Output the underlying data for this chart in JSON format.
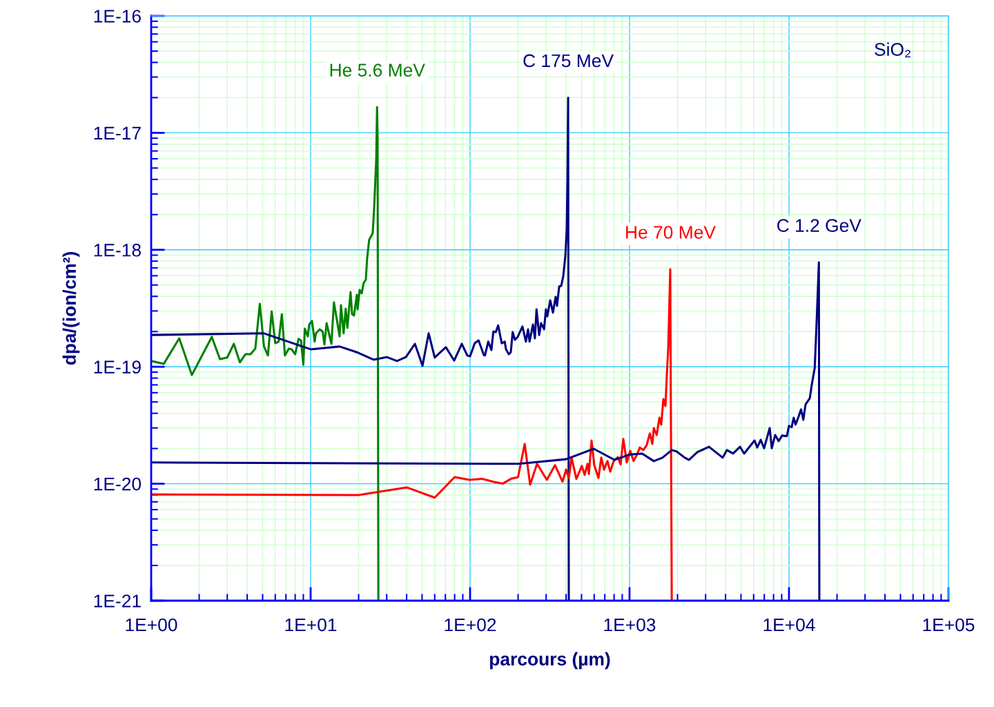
{
  "chart_data": {
    "type": "line",
    "xlabel": "parcours (µm)",
    "ylabel": "dpa/(ion/cm²)",
    "log": "xy",
    "grid": true,
    "legend": false,
    "marker": "none",
    "line_style": "solid",
    "xlim": [
      1,
      100000
    ],
    "ylim": [
      1e-21,
      1e-16
    ],
    "xticks": [
      {
        "value": 1,
        "label": "1E+00"
      },
      {
        "value": 2,
        "label": null
      },
      {
        "value": 3,
        "label": null
      },
      {
        "value": 4,
        "label": null
      },
      {
        "value": 5,
        "label": null
      },
      {
        "value": 6,
        "label": null
      },
      {
        "value": 7,
        "label": null
      },
      {
        "value": 8,
        "label": null
      },
      {
        "value": 9,
        "label": null
      },
      {
        "value": 10,
        "label": "1E+01"
      },
      {
        "value": 20,
        "label": null
      },
      {
        "value": 30,
        "label": null
      },
      {
        "value": 40,
        "label": null
      },
      {
        "value": 50,
        "label": null
      },
      {
        "value": 60,
        "label": null
      },
      {
        "value": 70,
        "label": null
      },
      {
        "value": 80,
        "label": null
      },
      {
        "value": 90,
        "label": null
      },
      {
        "value": 100,
        "label": "1E+02"
      },
      {
        "value": 200,
        "label": null
      },
      {
        "value": 300,
        "label": null
      },
      {
        "value": 400,
        "label": null
      },
      {
        "value": 500,
        "label": null
      },
      {
        "value": 600,
        "label": null
      },
      {
        "value": 700,
        "label": null
      },
      {
        "value": 800,
        "label": null
      },
      {
        "value": 900,
        "label": null
      },
      {
        "value": 1000,
        "label": "1E+03"
      },
      {
        "value": 2000,
        "label": null
      },
      {
        "value": 3000,
        "label": null
      },
      {
        "value": 4000,
        "label": null
      },
      {
        "value": 5000,
        "label": null
      },
      {
        "value": 6000,
        "label": null
      },
      {
        "value": 7000,
        "label": null
      },
      {
        "value": 8000,
        "label": null
      },
      {
        "value": 9000,
        "label": null
      },
      {
        "value": 10000,
        "label": "1E+04"
      },
      {
        "value": 20000,
        "label": null
      },
      {
        "value": 30000,
        "label": null
      },
      {
        "value": 40000,
        "label": null
      },
      {
        "value": 50000,
        "label": null
      },
      {
        "value": 60000,
        "label": null
      },
      {
        "value": 70000,
        "label": null
      },
      {
        "value": 80000,
        "label": null
      },
      {
        "value": 90000,
        "label": null
      },
      {
        "value": 100000,
        "label": "1E+05"
      }
    ],
    "yticks": [
      {
        "value": 1e-21,
        "label": "1E-21"
      },
      {
        "value": 2e-21,
        "label": null
      },
      {
        "value": 3e-21,
        "label": null
      },
      {
        "value": 4e-21,
        "label": null
      },
      {
        "value": 5e-21,
        "label": null
      },
      {
        "value": 6e-21,
        "label": null
      },
      {
        "value": 7e-21,
        "label": null
      },
      {
        "value": 8e-21,
        "label": null
      },
      {
        "value": 9e-21,
        "label": null
      },
      {
        "value": 1e-20,
        "label": "1E-20"
      },
      {
        "value": 2e-20,
        "label": null
      },
      {
        "value": 3e-20,
        "label": null
      },
      {
        "value": 4e-20,
        "label": null
      },
      {
        "value": 5e-20,
        "label": null
      },
      {
        "value": 6e-20,
        "label": null
      },
      {
        "value": 7e-20,
        "label": null
      },
      {
        "value": 8e-20,
        "label": null
      },
      {
        "value": 9e-20,
        "label": null
      },
      {
        "value": 1e-19,
        "label": "1E-19"
      },
      {
        "value": 2e-19,
        "label": null
      },
      {
        "value": 3e-19,
        "label": null
      },
      {
        "value": 4e-19,
        "label": null
      },
      {
        "value": 5e-19,
        "label": null
      },
      {
        "value": 6e-19,
        "label": null
      },
      {
        "value": 7e-19,
        "label": null
      },
      {
        "value": 8e-19,
        "label": null
      },
      {
        "value": 9e-19,
        "label": null
      },
      {
        "value": 1e-18,
        "label": "1E-18"
      },
      {
        "value": 2e-18,
        "label": null
      },
      {
        "value": 3e-18,
        "label": null
      },
      {
        "value": 4e-18,
        "label": null
      },
      {
        "value": 5e-18,
        "label": null
      },
      {
        "value": 6e-18,
        "label": null
      },
      {
        "value": 7e-18,
        "label": null
      },
      {
        "value": 8e-18,
        "label": null
      },
      {
        "value": 9e-18,
        "label": null
      },
      {
        "value": 1e-17,
        "label": "1E-17"
      },
      {
        "value": 2e-17,
        "label": null
      },
      {
        "value": 3e-17,
        "label": null
      },
      {
        "value": 4e-17,
        "label": null
      },
      {
        "value": 5e-17,
        "label": null
      },
      {
        "value": 6e-17,
        "label": null
      },
      {
        "value": 7e-17,
        "label": null
      },
      {
        "value": 8e-17,
        "label": null
      },
      {
        "value": 9e-17,
        "label": null
      },
      {
        "value": 1e-16,
        "label": "1E-16"
      }
    ],
    "annotations": [
      "SiO₂"
    ],
    "series": [
      {
        "name": "He 5.6 MeV",
        "color": "#008000",
        "x": [
          1.0,
          1.2,
          1.5,
          1.8,
          2.4,
          2.7,
          3.0,
          3.3,
          3.6,
          3.9,
          4.2,
          4.5,
          4.8,
          5.1,
          5.4,
          5.7,
          6.0,
          6.3,
          6.6,
          6.9,
          7.3,
          7.6,
          8.0,
          8.4,
          8.7,
          9.0,
          9.2,
          9.6,
          9.8,
          10.2,
          10.6,
          10.8,
          11.4,
          11.9,
          12.2,
          12.6,
          13.1,
          13.5,
          14.0,
          14.6,
          15.2,
          15.5,
          16.1,
          16.6,
          17.0,
          17.8,
          18.2,
          18.7,
          19.5,
          19.7,
          20.3,
          20.9,
          21.5,
          22.2,
          22.6,
          23.3,
          24.5,
          25.0,
          25.8,
          26.1,
          26.3,
          26.6
        ],
        "values": [
          1.12e-19,
          1.06e-19,
          1.75e-19,
          8.5e-20,
          1.8e-19,
          1.16e-19,
          1.2e-19,
          1.57e-19,
          1.09e-19,
          1.28e-19,
          1.28e-19,
          1.43e-19,
          3.45e-19,
          1.49e-19,
          1.25e-19,
          2.97e-19,
          1.59e-19,
          1.64e-19,
          2.82e-19,
          1.25e-19,
          1.43e-19,
          1.41e-19,
          1.28e-19,
          1.73e-19,
          1.68e-19,
          1.04e-19,
          2.12e-19,
          1.82e-19,
          2.3e-19,
          2.46e-19,
          1.64e-19,
          1.93e-19,
          2.09e-19,
          2e-19,
          1.55e-19,
          2.36e-19,
          1.87e-19,
          1.57e-19,
          3.55e-19,
          2.53e-19,
          1.82e-19,
          3.36e-19,
          1.93e-19,
          3.14e-19,
          2.15e-19,
          4.35e-19,
          2.82e-19,
          2.74e-19,
          4.12e-19,
          3.1e-19,
          4.53e-19,
          4.24e-19,
          5.19e-19,
          5.56e-19,
          8.36e-19,
          1.22e-18,
          1.38e-18,
          2.22e-18,
          6e-18,
          1.66e-17,
          9.4e-18,
          1e-21
        ]
      },
      {
        "name": "C 175 MeV",
        "color": "#000080",
        "x": [
          1.0,
          5.1,
          10,
          15.2,
          19.5,
          24.8,
          30,
          34.8,
          39.6,
          45.1,
          50.3,
          55,
          60,
          70.5,
          79.5,
          88.7,
          96,
          100,
          107,
          113,
          122,
          124,
          130,
          136,
          140,
          145,
          150,
          158,
          165,
          168,
          175,
          180,
          185,
          191,
          199,
          213,
          224,
          231,
          236,
          248,
          255,
          261,
          271,
          279,
          291,
          299,
          305,
          318,
          331,
          344,
          351,
          362,
          373,
          384,
          396,
          404,
          408,
          412,
          416
        ],
        "values": [
          1.87e-19,
          1.93e-19,
          1.41e-19,
          1.49e-19,
          1.33e-19,
          1.15e-19,
          1.21e-19,
          1.12e-19,
          1.21e-19,
          1.57e-19,
          1.02e-19,
          1.93e-19,
          1.2e-19,
          1.47e-19,
          1.13e-19,
          1.57e-19,
          1.25e-19,
          1.23e-19,
          1.59e-19,
          1.68e-19,
          1.26e-19,
          1.25e-19,
          1.64e-19,
          1.39e-19,
          2e-19,
          1.98e-19,
          2.26e-19,
          1.59e-19,
          1.64e-19,
          1.41e-19,
          1.28e-19,
          1.33e-19,
          1.98e-19,
          1.7e-19,
          1.8e-19,
          2.21e-19,
          1.64e-19,
          2.09e-19,
          1.64e-19,
          2.3e-19,
          1.75e-19,
          3.1e-19,
          1.87e-19,
          2.36e-19,
          2.09e-19,
          3.1e-19,
          2.7e-19,
          3.7e-19,
          2.9e-19,
          3.96e-19,
          3.32e-19,
          4.85e-19,
          4.92e-19,
          5.95e-19,
          8.95e-19,
          1.54e-18,
          3.99e-18,
          2e-17,
          1e-21
        ]
      },
      {
        "name": "He 70 MeV",
        "color": "#ff0000",
        "x": [
          1.0,
          20,
          40,
          60,
          80,
          99,
          119,
          140,
          160,
          180,
          200,
          220,
          238,
          263,
          303,
          341,
          380,
          400,
          416,
          433,
          464,
          502,
          523,
          545,
          556,
          578,
          601,
          638,
          665,
          692,
          727,
          757,
          795,
          844,
          879,
          914,
          961,
          1010,
          1060,
          1120,
          1160,
          1220,
          1280,
          1340,
          1390,
          1420,
          1480,
          1540,
          1580,
          1630,
          1680,
          1710,
          1750,
          1800,
          1840
        ],
        "values": [
          8.1e-21,
          8e-21,
          9.3e-21,
          7.6e-21,
          1.14e-20,
          1.08e-20,
          1.1e-20,
          1.04e-20,
          1e-20,
          1.1e-20,
          1.14e-20,
          2.19e-20,
          9.8e-21,
          1.48e-20,
          1.08e-20,
          1.44e-20,
          1.04e-20,
          1.32e-20,
          1.12e-20,
          1.67e-20,
          1.1e-20,
          1.42e-20,
          1.19e-20,
          1.48e-20,
          1.21e-20,
          2.34e-20,
          1.44e-20,
          1.12e-20,
          1.67e-20,
          1.32e-20,
          1.56e-20,
          1.27e-20,
          1.56e-20,
          1.69e-20,
          1.46e-20,
          2.41e-20,
          1.52e-20,
          1.91e-20,
          1.56e-20,
          1.81e-20,
          2.04e-20,
          1.94e-20,
          2.13e-20,
          2.69e-20,
          2.19e-20,
          2.99e-20,
          2.61e-20,
          3.67e-20,
          3.2e-20,
          5.3e-20,
          4.62e-20,
          8.07e-20,
          1.47e-19,
          6.82e-19,
          1e-21
        ]
      },
      {
        "name": "C 1.2 GeV",
        "color": "#000080",
        "x": [
          1.0,
          140,
          200,
          400,
          596,
          804,
          1010,
          1200,
          1420,
          1610,
          1840,
          1970,
          2220,
          2360,
          2660,
          3150,
          3840,
          4080,
          4460,
          4930,
          5230,
          6080,
          6320,
          6650,
          6980,
          7200,
          7570,
          7800,
          8190,
          8610,
          9050,
          9700,
          10000,
          10400,
          10700,
          11000,
          11500,
          11900,
          12300,
          12700,
          13500,
          13900,
          14500,
          14900,
          15400,
          15500
        ],
        "values": [
          1.52e-20,
          1.48e-20,
          1.48e-20,
          1.62e-20,
          1.99e-20,
          1.6e-20,
          1.78e-20,
          1.81e-20,
          1.56e-20,
          1.67e-20,
          1.94e-20,
          1.89e-20,
          1.67e-20,
          1.6e-20,
          1.86e-20,
          2.07e-20,
          1.67e-20,
          1.94e-20,
          1.81e-20,
          2.07e-20,
          1.81e-20,
          2.34e-20,
          2.04e-20,
          2.37e-20,
          2.01e-20,
          2.34e-20,
          2.99e-20,
          2.01e-20,
          2.61e-20,
          2.31e-20,
          2.58e-20,
          2.55e-20,
          3.12e-20,
          3.05e-20,
          3.67e-20,
          3.2e-20,
          3.77e-20,
          4.32e-20,
          3.52e-20,
          4.75e-20,
          5.37e-20,
          7.05e-20,
          9.75e-20,
          2.39e-19,
          7.8e-19,
          1e-21
        ]
      }
    ]
  }
}
